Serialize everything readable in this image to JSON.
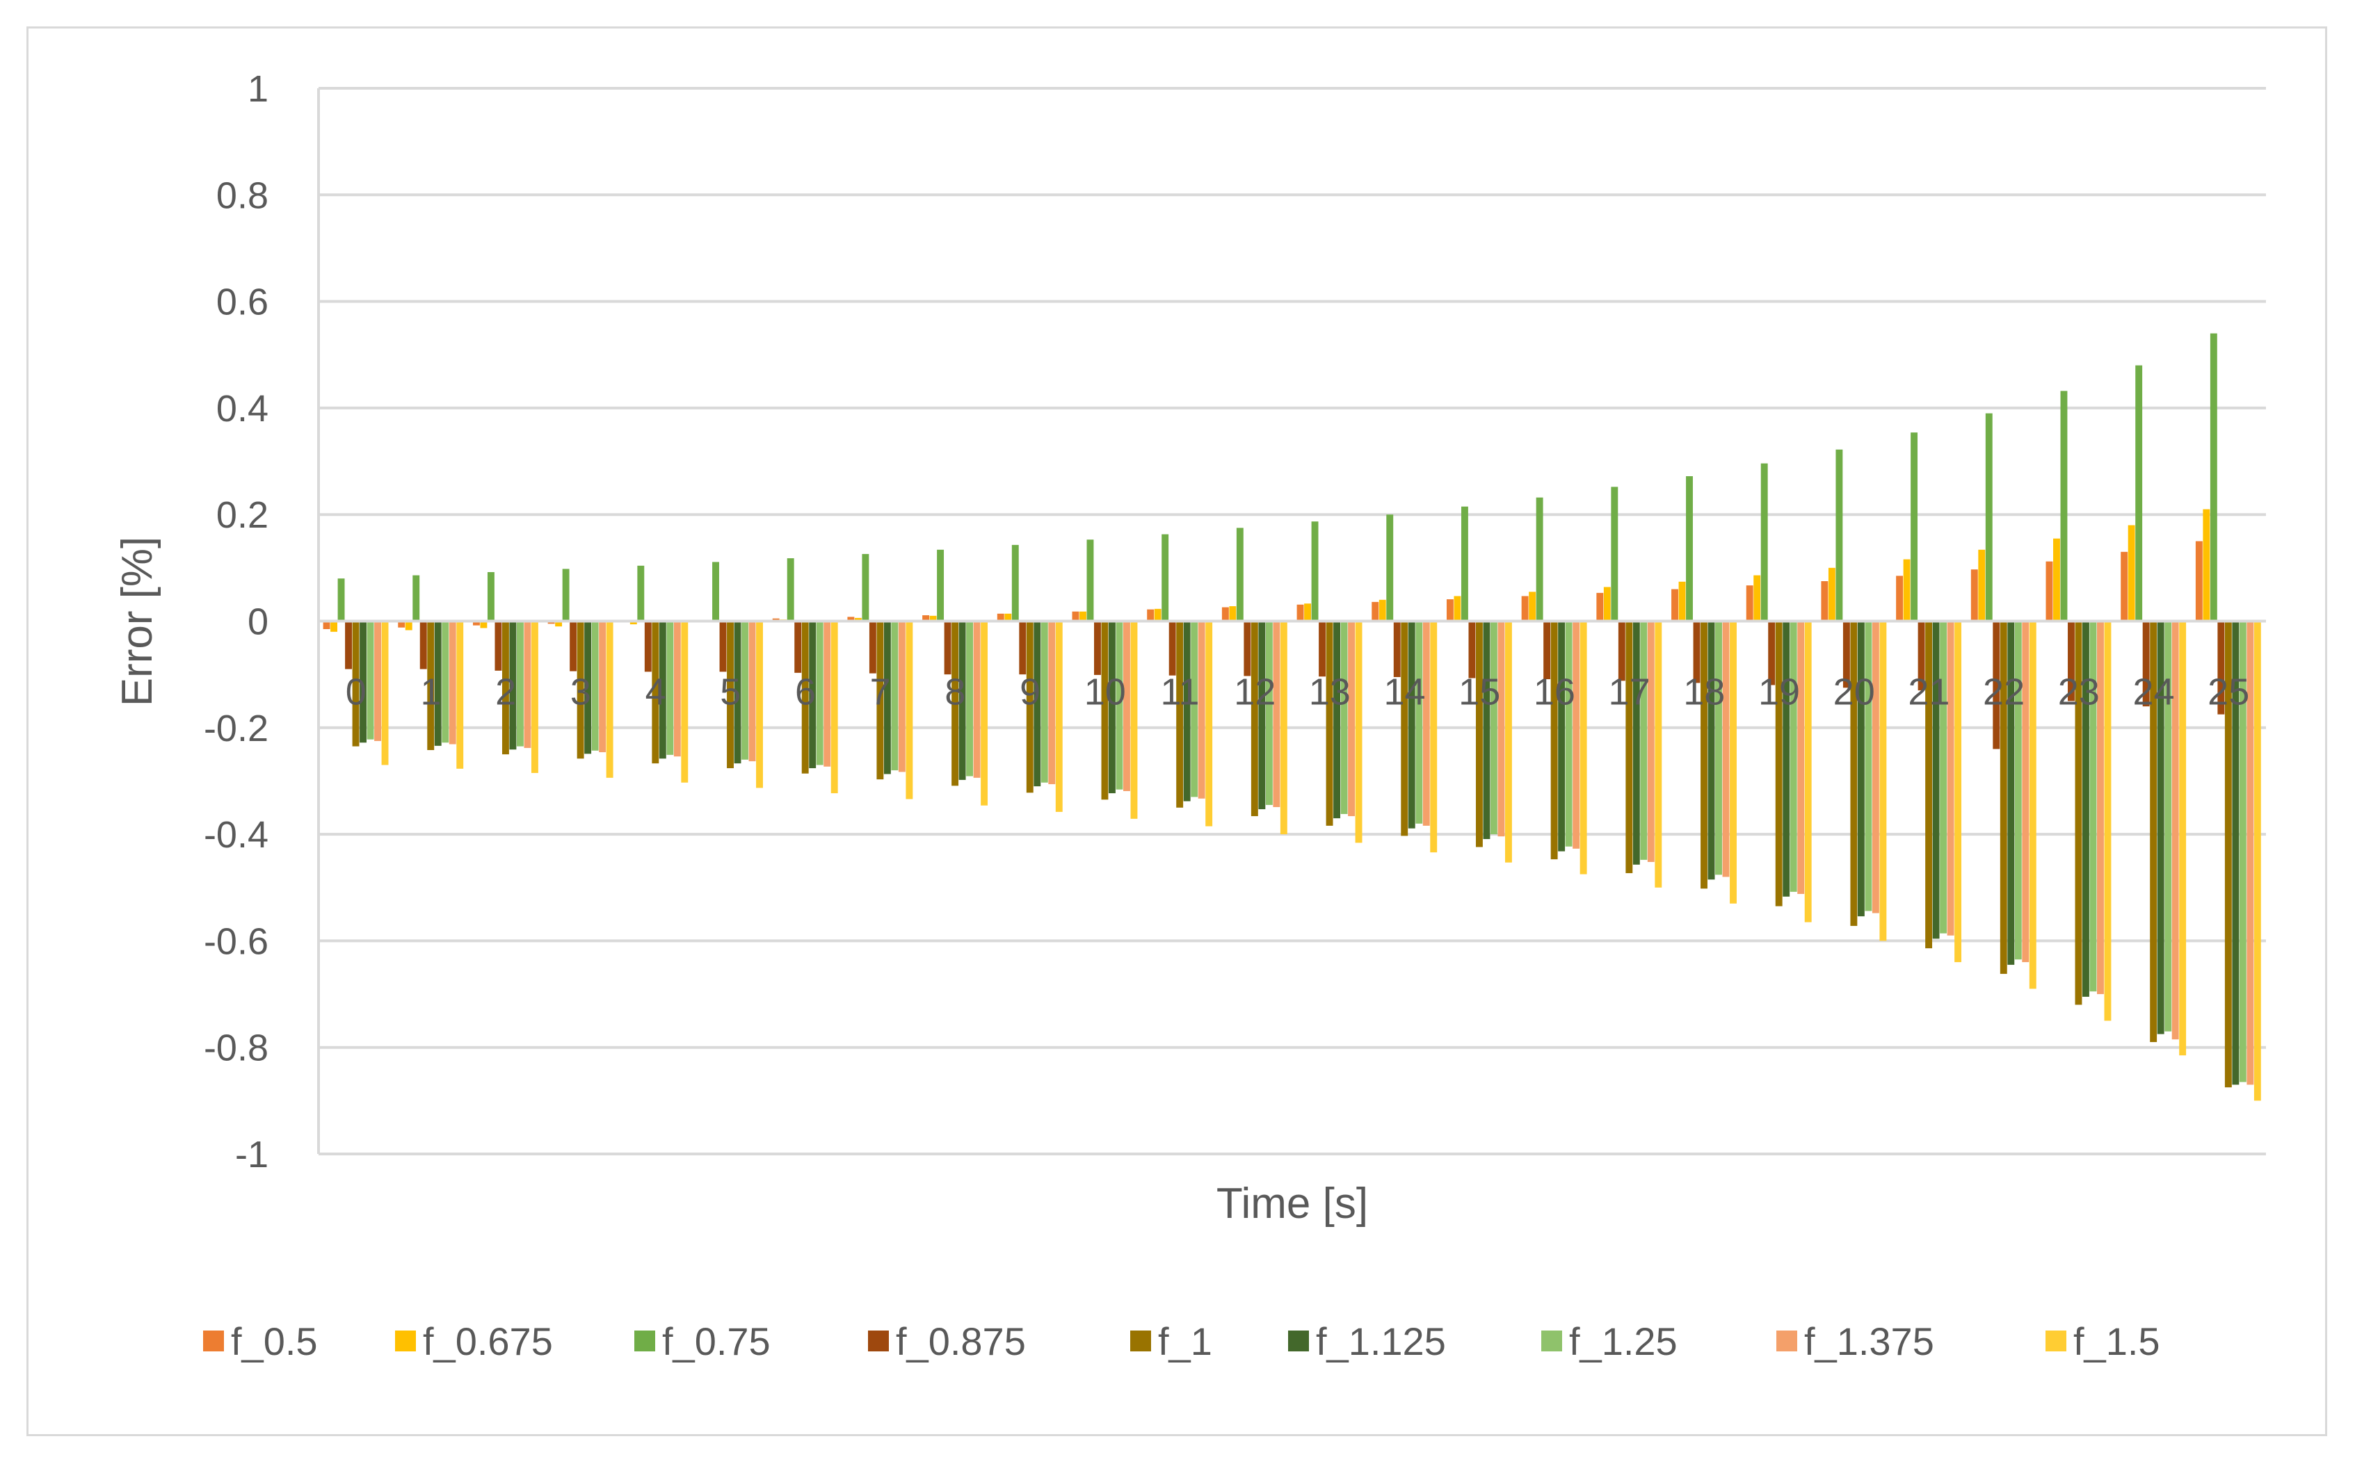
{
  "chart_data": {
    "type": "bar",
    "xlabel": "Time [s]",
    "ylabel": "Error [%]",
    "ylim": [
      -1,
      1
    ],
    "ytick_step": 0.2,
    "yticks": [
      "1",
      "0.8",
      "0.6",
      "0.4",
      "0.2",
      "0",
      "-0.2",
      "-0.4",
      "-0.6",
      "-0.8",
      "-1"
    ],
    "grid": true,
    "legend_position": "bottom",
    "categories": [
      "0",
      "1",
      "2",
      "3",
      "4",
      "5",
      "6",
      "7",
      "8",
      "9",
      "10",
      "11",
      "12",
      "13",
      "14",
      "15",
      "16",
      "17",
      "18",
      "19",
      "20",
      "21",
      "22",
      "23",
      "24",
      "25"
    ],
    "series": [
      {
        "name": "f_0.5",
        "color": "#ED7D31",
        "values": [
          -0.015,
          -0.012,
          -0.008,
          -0.005,
          -0.002,
          0.002,
          0.005,
          0.008,
          0.011,
          0.014,
          0.018,
          0.022,
          0.026,
          0.031,
          0.036,
          0.041,
          0.047,
          0.053,
          0.06,
          0.067,
          0.075,
          0.085,
          0.097,
          0.112,
          0.13,
          0.15
        ]
      },
      {
        "name": "f_0.675",
        "color": "#FFC000",
        "values": [
          -0.02,
          -0.017,
          -0.013,
          -0.01,
          -0.006,
          -0.002,
          0.003,
          0.006,
          0.01,
          0.014,
          0.018,
          0.023,
          0.028,
          0.033,
          0.04,
          0.047,
          0.055,
          0.064,
          0.074,
          0.086,
          0.1,
          0.116,
          0.134,
          0.155,
          0.18,
          0.21
        ]
      },
      {
        "name": "f_0.75",
        "color": "#70AD47",
        "values": [
          0.08,
          0.086,
          0.092,
          0.098,
          0.104,
          0.111,
          0.118,
          0.126,
          0.134,
          0.143,
          0.153,
          0.163,
          0.175,
          0.187,
          0.2,
          0.215,
          0.232,
          0.252,
          0.272,
          0.296,
          0.322,
          0.354,
          0.39,
          0.432,
          0.48,
          0.54
        ]
      },
      {
        "name": "f_0.875",
        "color": "#9E480E",
        "values": [
          -0.09,
          -0.09,
          -0.093,
          -0.094,
          -0.095,
          -0.095,
          -0.097,
          -0.098,
          -0.1,
          -0.1,
          -0.101,
          -0.102,
          -0.103,
          -0.104,
          -0.105,
          -0.107,
          -0.109,
          -0.112,
          -0.116,
          -0.12,
          -0.125,
          -0.13,
          -0.24,
          -0.15,
          -0.16,
          -0.175
        ]
      },
      {
        "name": "f_1",
        "color": "#997300",
        "values": [
          -0.235,
          -0.242,
          -0.25,
          -0.258,
          -0.267,
          -0.276,
          -0.286,
          -0.297,
          -0.309,
          -0.322,
          -0.335,
          -0.35,
          -0.366,
          -0.384,
          -0.403,
          -0.424,
          -0.447,
          -0.473,
          -0.502,
          -0.535,
          -0.572,
          -0.614,
          -0.662,
          -0.72,
          -0.79,
          -0.875
        ]
      },
      {
        "name": "f_1.125",
        "color": "#43682B",
        "values": [
          -0.228,
          -0.234,
          -0.241,
          -0.249,
          -0.258,
          -0.267,
          -0.276,
          -0.287,
          -0.298,
          -0.31,
          -0.323,
          -0.338,
          -0.353,
          -0.37,
          -0.389,
          -0.409,
          -0.432,
          -0.457,
          -0.485,
          -0.517,
          -0.554,
          -0.596,
          -0.645,
          -0.705,
          -0.775,
          -0.87
        ]
      },
      {
        "name": "f_1.25",
        "color": "#8FC26B",
        "values": [
          -0.222,
          -0.228,
          -0.235,
          -0.243,
          -0.251,
          -0.26,
          -0.27,
          -0.28,
          -0.291,
          -0.303,
          -0.316,
          -0.33,
          -0.345,
          -0.362,
          -0.38,
          -0.4,
          -0.423,
          -0.448,
          -0.476,
          -0.508,
          -0.544,
          -0.586,
          -0.635,
          -0.695,
          -0.77,
          -0.865
        ]
      },
      {
        "name": "f_1.375",
        "color": "#F4A06A",
        "values": [
          -0.225,
          -0.231,
          -0.238,
          -0.246,
          -0.254,
          -0.263,
          -0.273,
          -0.283,
          -0.294,
          -0.306,
          -0.319,
          -0.333,
          -0.349,
          -0.366,
          -0.384,
          -0.404,
          -0.427,
          -0.452,
          -0.48,
          -0.512,
          -0.548,
          -0.59,
          -0.64,
          -0.7,
          -0.785,
          -0.87
        ]
      },
      {
        "name": "f_1.5",
        "color": "#FFCD33",
        "values": [
          -0.27,
          -0.277,
          -0.285,
          -0.294,
          -0.303,
          -0.313,
          -0.323,
          -0.334,
          -0.346,
          -0.358,
          -0.371,
          -0.385,
          -0.4,
          -0.416,
          -0.434,
          -0.453,
          -0.475,
          -0.5,
          -0.53,
          -0.565,
          -0.6,
          -0.64,
          -0.69,
          -0.75,
          -0.815,
          -0.9
        ]
      }
    ]
  }
}
